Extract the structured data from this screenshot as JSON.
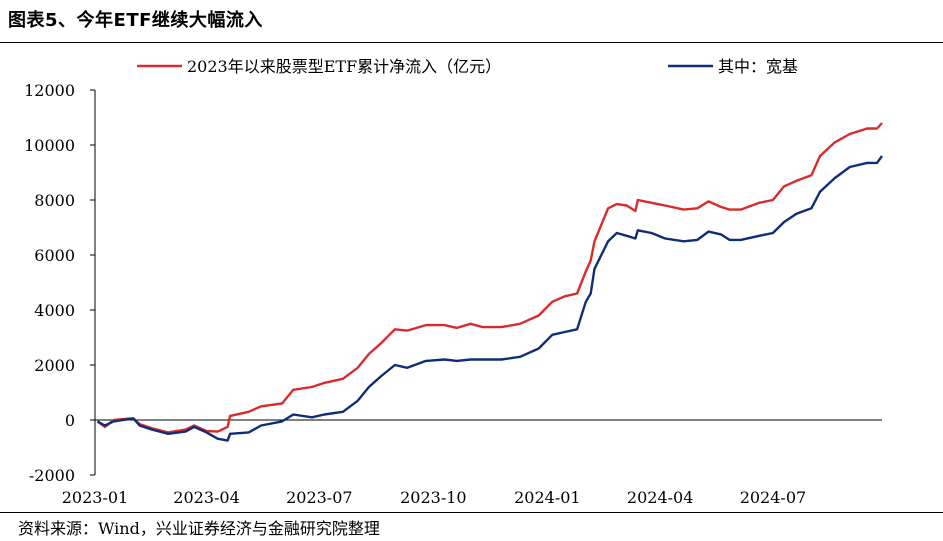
{
  "header": {
    "title": "图表5、今年ETF继续大幅流入"
  },
  "footer": {
    "source": "资料来源：Wind，兴业证券经济与金融研究院整理"
  },
  "chart_data": {
    "type": "line",
    "title": "",
    "xlabel": "",
    "ylabel": "",
    "ylim": [
      -2000,
      12000
    ],
    "yticks": [
      -2000,
      0,
      2000,
      4000,
      6000,
      8000,
      10000,
      12000
    ],
    "xticks": [
      "2023-01",
      "2023-04",
      "2023-07",
      "2023-10",
      "2024-01",
      "2024-04",
      "2024-07"
    ],
    "x_end": "2024-09-27",
    "grid": false,
    "legend_position": "top",
    "series": [
      {
        "name": "2023年以来股票型ETF累计净流入（亿元）",
        "color": "#d92b2b",
        "points": [
          [
            "2023-01-03",
            -50
          ],
          [
            "2023-01-09",
            -250
          ],
          [
            "2023-01-16",
            0
          ],
          [
            "2023-01-28",
            50
          ],
          [
            "2023-02-01",
            60
          ],
          [
            "2023-02-06",
            -150
          ],
          [
            "2023-02-16",
            -300
          ],
          [
            "2023-03-01",
            -450
          ],
          [
            "2023-03-15",
            -350
          ],
          [
            "2023-03-22",
            -200
          ],
          [
            "2023-04-01",
            -400
          ],
          [
            "2023-04-10",
            -420
          ],
          [
            "2023-04-18",
            -250
          ],
          [
            "2023-04-20",
            150
          ],
          [
            "2023-05-05",
            300
          ],
          [
            "2023-05-15",
            500
          ],
          [
            "2023-06-01",
            600
          ],
          [
            "2023-06-10",
            1100
          ],
          [
            "2023-06-25",
            1200
          ],
          [
            "2023-07-05",
            1350
          ],
          [
            "2023-07-20",
            1500
          ],
          [
            "2023-08-01",
            1900
          ],
          [
            "2023-08-10",
            2400
          ],
          [
            "2023-08-20",
            2800
          ],
          [
            "2023-08-31",
            3300
          ],
          [
            "2023-09-10",
            3250
          ],
          [
            "2023-09-25",
            3450
          ],
          [
            "2023-10-10",
            3450
          ],
          [
            "2023-10-20",
            3350
          ],
          [
            "2023-10-31",
            3500
          ],
          [
            "2023-11-10",
            3380
          ],
          [
            "2023-11-25",
            3380
          ],
          [
            "2023-12-10",
            3500
          ],
          [
            "2023-12-25",
            3800
          ],
          [
            "2024-01-05",
            4300
          ],
          [
            "2024-01-15",
            4500
          ],
          [
            "2024-01-25",
            4600
          ],
          [
            "2024-02-01",
            5400
          ],
          [
            "2024-02-05",
            5800
          ],
          [
            "2024-02-08",
            6500
          ],
          [
            "2024-02-19",
            7700
          ],
          [
            "2024-02-26",
            7850
          ],
          [
            "2024-03-05",
            7800
          ],
          [
            "2024-03-12",
            7600
          ],
          [
            "2024-03-14",
            8000
          ],
          [
            "2024-03-25",
            7900
          ],
          [
            "2024-04-05",
            7800
          ],
          [
            "2024-04-20",
            7650
          ],
          [
            "2024-05-01",
            7700
          ],
          [
            "2024-05-10",
            7950
          ],
          [
            "2024-05-20",
            7750
          ],
          [
            "2024-05-27",
            7650
          ],
          [
            "2024-06-05",
            7650
          ],
          [
            "2024-06-20",
            7900
          ],
          [
            "2024-07-01",
            8000
          ],
          [
            "2024-07-10",
            8500
          ],
          [
            "2024-07-20",
            8700
          ],
          [
            "2024-08-01",
            8900
          ],
          [
            "2024-08-08",
            9600
          ],
          [
            "2024-08-20",
            10100
          ],
          [
            "2024-09-01",
            10400
          ],
          [
            "2024-09-15",
            10600
          ],
          [
            "2024-09-23",
            10600
          ],
          [
            "2024-09-27",
            10800
          ]
        ]
      },
      {
        "name": "其中：宽基",
        "color": "#0f2d78",
        "points": [
          [
            "2023-01-03",
            -50
          ],
          [
            "2023-01-09",
            -200
          ],
          [
            "2023-01-16",
            -50
          ],
          [
            "2023-01-28",
            30
          ],
          [
            "2023-02-01",
            60
          ],
          [
            "2023-02-06",
            -200
          ],
          [
            "2023-02-16",
            -350
          ],
          [
            "2023-03-01",
            -500
          ],
          [
            "2023-03-15",
            -420
          ],
          [
            "2023-03-22",
            -250
          ],
          [
            "2023-04-01",
            -450
          ],
          [
            "2023-04-10",
            -680
          ],
          [
            "2023-04-18",
            -750
          ],
          [
            "2023-04-20",
            -500
          ],
          [
            "2023-05-05",
            -450
          ],
          [
            "2023-05-15",
            -200
          ],
          [
            "2023-06-01",
            -50
          ],
          [
            "2023-06-10",
            200
          ],
          [
            "2023-06-25",
            100
          ],
          [
            "2023-07-05",
            200
          ],
          [
            "2023-07-20",
            300
          ],
          [
            "2023-08-01",
            700
          ],
          [
            "2023-08-10",
            1200
          ],
          [
            "2023-08-20",
            1600
          ],
          [
            "2023-08-31",
            2000
          ],
          [
            "2023-09-10",
            1900
          ],
          [
            "2023-09-25",
            2150
          ],
          [
            "2023-10-10",
            2200
          ],
          [
            "2023-10-20",
            2150
          ],
          [
            "2023-10-31",
            2200
          ],
          [
            "2023-11-10",
            2200
          ],
          [
            "2023-11-25",
            2200
          ],
          [
            "2023-12-10",
            2300
          ],
          [
            "2023-12-25",
            2600
          ],
          [
            "2024-01-05",
            3100
          ],
          [
            "2024-01-15",
            3200
          ],
          [
            "2024-01-25",
            3300
          ],
          [
            "2024-02-01",
            4300
          ],
          [
            "2024-02-05",
            4600
          ],
          [
            "2024-02-08",
            5500
          ],
          [
            "2024-02-19",
            6500
          ],
          [
            "2024-02-26",
            6800
          ],
          [
            "2024-03-05",
            6700
          ],
          [
            "2024-03-12",
            6600
          ],
          [
            "2024-03-14",
            6900
          ],
          [
            "2024-03-25",
            6800
          ],
          [
            "2024-04-05",
            6600
          ],
          [
            "2024-04-20",
            6500
          ],
          [
            "2024-05-01",
            6550
          ],
          [
            "2024-05-10",
            6850
          ],
          [
            "2024-05-20",
            6750
          ],
          [
            "2024-05-27",
            6550
          ],
          [
            "2024-06-05",
            6550
          ],
          [
            "2024-06-20",
            6700
          ],
          [
            "2024-07-01",
            6800
          ],
          [
            "2024-07-10",
            7200
          ],
          [
            "2024-07-20",
            7500
          ],
          [
            "2024-08-01",
            7700
          ],
          [
            "2024-08-08",
            8300
          ],
          [
            "2024-08-20",
            8800
          ],
          [
            "2024-09-01",
            9200
          ],
          [
            "2024-09-15",
            9350
          ],
          [
            "2024-09-23",
            9350
          ],
          [
            "2024-09-27",
            9600
          ]
        ]
      }
    ]
  }
}
